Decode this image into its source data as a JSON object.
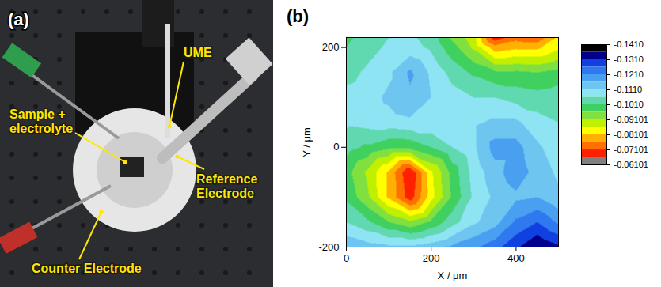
{
  "chart_data": [
    {
      "type": "photo",
      "panel_label": "(a)",
      "annotations": [
        "UME",
        "Sample + electrolyte",
        "Reference Electrode",
        "Counter Electrode"
      ]
    },
    {
      "type": "heatmap",
      "panel_label": "(b)",
      "x_label": "X / μm",
      "y_label": "Y / μm",
      "xlim": [
        0,
        500
      ],
      "ylim": [
        -200,
        220
      ],
      "xticks": [
        0,
        200,
        400
      ],
      "yticks": [
        -200,
        0,
        200
      ],
      "cells": {
        "x": [
          0,
          50,
          100,
          150,
          200,
          250,
          300,
          350,
          400,
          450,
          500
        ],
        "y": [
          -200,
          -150,
          -100,
          -50,
          0,
          50,
          100,
          150,
          200,
          220
        ],
        "values": [
          [
            -0.115,
            -0.113,
            -0.112,
            -0.112,
            -0.114,
            -0.117,
            -0.12,
            -0.124,
            -0.13,
            -0.136,
            -0.132
          ],
          [
            -0.106,
            -0.102,
            -0.096,
            -0.092,
            -0.097,
            -0.104,
            -0.11,
            -0.114,
            -0.122,
            -0.126,
            -0.12
          ],
          [
            -0.1,
            -0.092,
            -0.08,
            -0.068,
            -0.084,
            -0.097,
            -0.107,
            -0.112,
            -0.115,
            -0.116,
            -0.112
          ],
          [
            -0.098,
            -0.09,
            -0.08,
            -0.066,
            -0.085,
            -0.098,
            -0.108,
            -0.114,
            -0.119,
            -0.114,
            -0.11
          ],
          [
            -0.103,
            -0.1,
            -0.097,
            -0.097,
            -0.101,
            -0.106,
            -0.11,
            -0.118,
            -0.118,
            -0.112,
            -0.108
          ],
          [
            -0.107,
            -0.108,
            -0.109,
            -0.11,
            -0.11,
            -0.11,
            -0.11,
            -0.112,
            -0.112,
            -0.108,
            -0.106
          ],
          [
            -0.108,
            -0.109,
            -0.112,
            -0.115,
            -0.111,
            -0.108,
            -0.106,
            -0.106,
            -0.104,
            -0.103,
            -0.104
          ],
          [
            -0.104,
            -0.107,
            -0.11,
            -0.117,
            -0.11,
            -0.104,
            -0.1,
            -0.097,
            -0.097,
            -0.096,
            -0.098
          ],
          [
            -0.101,
            -0.104,
            -0.107,
            -0.108,
            -0.105,
            -0.098,
            -0.09,
            -0.078,
            -0.08,
            -0.08,
            -0.085
          ],
          [
            -0.1,
            -0.103,
            -0.106,
            -0.107,
            -0.104,
            -0.095,
            -0.088,
            -0.068,
            -0.074,
            -0.072,
            -0.082
          ]
        ]
      },
      "colorbar": {
        "range": [
          -0.141,
          -0.06101
        ],
        "ticks": [
          {
            "value": -0.141,
            "label": "-0.1410"
          },
          {
            "value": -0.131,
            "label": "-0.1310"
          },
          {
            "value": -0.121,
            "label": "-0.1210"
          },
          {
            "value": -0.111,
            "label": "-0.1110"
          },
          {
            "value": -0.101,
            "label": "-0.1010"
          },
          -0.09101,
          -0.08101,
          -0.07101,
          -0.06101
        ],
        "levels": [
          -0.141,
          -0.136,
          -0.131,
          -0.126,
          -0.121,
          -0.116,
          -0.111,
          -0.106,
          -0.101,
          -0.096,
          -0.091,
          -0.086,
          -0.081,
          -0.076,
          -0.071,
          -0.066,
          -0.06101
        ],
        "colors": [
          "#000000",
          "#00008b",
          "#1040e0",
          "#2f78f0",
          "#4aa0f0",
          "#6ec6f0",
          "#8ee4f2",
          "#60d8b0",
          "#40d060",
          "#80e040",
          "#c0f000",
          "#ffff00",
          "#ffb000",
          "#ff7000",
          "#ff2000",
          "#808080"
        ]
      }
    }
  ]
}
